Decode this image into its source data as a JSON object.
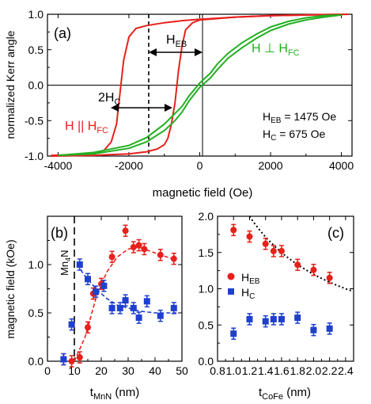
{
  "colors": {
    "red": "#e8201c",
    "green": "#22b022",
    "blue": "#1f3fd0",
    "black": "#000000"
  },
  "chart_data": [
    {
      "panel": "(a)",
      "type": "line",
      "xlabel": "magnetic field (Oe)",
      "ylabel": "normalized Kerr angle",
      "xlim": [
        -4300,
        4300
      ],
      "ylim": [
        -1.0,
        1.0
      ],
      "xticks": [
        "-4000",
        "-2000",
        "0",
        "2000",
        "4000"
      ],
      "yticks": [
        "-1.0",
        "-0.5",
        "0.0",
        "0.5",
        "1.0"
      ],
      "grid": false,
      "annotations": {
        "panel_label": "(a)",
        "heb": "H",
        "heb_sub": "EB",
        "twohc": "2H",
        "twohc_sub": "C",
        "parallel": "H || H",
        "parallel_sub": "FC",
        "perp": "H ⊥ H",
        "perp_sub": "FC",
        "heb_value": "H",
        "heb_value_sub": "EB",
        "heb_value_rest": " = 1475 Oe",
        "hc_value": "H",
        "hc_value_sub": "C",
        "hc_value_rest": " = 675 Oe"
      },
      "series": [
        {
          "color": "red",
          "x": [
            -4200,
            -3500,
            -3000,
            -2700,
            -2500,
            -2350,
            -2250,
            -2150,
            -2000,
            -1800,
            -1500,
            -1000,
            -500,
            0,
            1000,
            2000,
            3000,
            4200
          ],
          "y": [
            -0.99,
            -0.98,
            -0.96,
            -0.92,
            -0.8,
            -0.55,
            -0.1,
            0.35,
            0.68,
            0.8,
            0.84,
            0.88,
            0.91,
            0.93,
            0.96,
            0.98,
            0.99,
            1.0
          ]
        },
        {
          "color": "red",
          "x": [
            -4200,
            -3000,
            -2000,
            -1500,
            -1200,
            -1000,
            -900,
            -800,
            -700,
            -600,
            -500,
            -400,
            -200,
            0,
            1000,
            2000,
            3000,
            4200
          ],
          "y": [
            -1.0,
            -0.99,
            -0.97,
            -0.94,
            -0.9,
            -0.84,
            -0.75,
            -0.55,
            -0.25,
            0.2,
            0.55,
            0.78,
            0.88,
            0.92,
            0.96,
            0.98,
            0.99,
            1.0
          ]
        },
        {
          "color": "green",
          "x": [
            -4000,
            -3000,
            -2000,
            -1500,
            -1000,
            -700,
            -500,
            -300,
            0,
            300,
            500,
            800,
            1200,
            1600,
            2000,
            2500,
            3000,
            3500,
            4000
          ],
          "y": [
            -0.99,
            -0.95,
            -0.85,
            -0.74,
            -0.55,
            -0.4,
            -0.3,
            -0.15,
            0.03,
            0.17,
            0.3,
            0.45,
            0.6,
            0.72,
            0.82,
            0.9,
            0.95,
            0.98,
            0.99
          ]
        },
        {
          "color": "green",
          "x": [
            -4000,
            -3000,
            -2000,
            -1500,
            -1000,
            -700,
            -500,
            -300,
            0,
            300,
            500,
            800,
            1200,
            1600,
            2000,
            2500,
            3000,
            3500,
            4000
          ],
          "y": [
            -0.99,
            -0.97,
            -0.89,
            -0.8,
            -0.64,
            -0.5,
            -0.38,
            -0.22,
            -0.03,
            0.1,
            0.22,
            0.38,
            0.53,
            0.66,
            0.77,
            0.86,
            0.92,
            0.96,
            0.99
          ]
        }
      ]
    },
    {
      "panel": "(b)",
      "type": "scatter",
      "xlabel": "t",
      "xlabel_sub": "MnN",
      "xlabel_rest": " (nm)",
      "ylabel": "magnetic field (kOe)",
      "xlim": [
        0,
        50
      ],
      "ylim": [
        0.0,
        1.5
      ],
      "xticks": [
        "0",
        "10",
        "20",
        "30",
        "40",
        "50"
      ],
      "yticks": [
        "0.0",
        "0.5",
        "1.0"
      ],
      "panel_label": "(b)",
      "vertical_label": "Mn",
      "vertical_label_sub": "4",
      "vertical_label_rest": "N",
      "series": [
        {
          "color": "red",
          "marker": "circle",
          "x": [
            6,
            9,
            12,
            15,
            17,
            20,
            24,
            29,
            32,
            34,
            36,
            42,
            47
          ],
          "y": [
            0.02,
            0.0,
            0.04,
            0.35,
            0.7,
            0.8,
            1.08,
            1.35,
            1.18,
            1.2,
            1.16,
            1.1,
            1.06
          ]
        },
        {
          "color": "blue",
          "marker": "square",
          "x": [
            6,
            9,
            12,
            15,
            18,
            21,
            24,
            27,
            29,
            32,
            34,
            37,
            42,
            47
          ],
          "y": [
            0.02,
            0.38,
            1.0,
            0.85,
            0.72,
            0.78,
            0.55,
            0.55,
            0.63,
            0.55,
            0.45,
            0.62,
            0.47,
            0.55
          ]
        }
      ]
    },
    {
      "panel": "(c)",
      "type": "scatter",
      "xlabel": "t",
      "xlabel_sub": "CoFe",
      "xlabel_rest": " (nm)",
      "xlim": [
        0.8,
        2.5
      ],
      "ylim": [
        0.0,
        2.0
      ],
      "xticks": [
        "0.8",
        "1.0",
        "1.2",
        "1.4",
        "1.6",
        "1.8",
        "2.0",
        "2.2",
        "2.4"
      ],
      "yticks": [
        "0.0",
        "0.5",
        "1.0",
        "1.5",
        "2.0"
      ],
      "panel_label": "(c)",
      "legend": [
        {
          "label": "H",
          "sub": "EB",
          "color": "red",
          "marker": "circle"
        },
        {
          "label": "H",
          "sub": "C",
          "color": "blue",
          "marker": "square"
        }
      ],
      "series": [
        {
          "color": "red",
          "marker": "circle",
          "x": [
            1.0,
            1.2,
            1.4,
            1.5,
            1.6,
            1.8,
            2.0,
            2.2
          ],
          "y": [
            1.81,
            1.72,
            1.62,
            1.52,
            1.52,
            1.33,
            1.26,
            1.15
          ]
        },
        {
          "color": "blue",
          "marker": "square",
          "x": [
            1.0,
            1.2,
            1.4,
            1.5,
            1.6,
            1.8,
            2.0,
            2.2
          ],
          "y": [
            0.38,
            0.58,
            0.55,
            0.58,
            0.58,
            0.6,
            0.43,
            0.45
          ]
        }
      ]
    }
  ]
}
